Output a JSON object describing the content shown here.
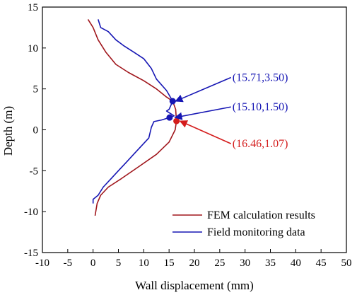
{
  "chart_data": {
    "type": "line",
    "xlabel": "Wall displacement (mm)",
    "ylabel": "Depth (m)",
    "xlim": [
      -10,
      50
    ],
    "ylim": [
      -15,
      15
    ],
    "xticks": [
      -10,
      -5,
      0,
      5,
      10,
      15,
      20,
      25,
      30,
      35,
      40,
      45,
      50
    ],
    "yticks": [
      -15,
      -10,
      -5,
      0,
      5,
      10,
      15
    ],
    "legend_position": "bottom-right",
    "grid": false,
    "series": [
      {
        "name": "FEM calculation results",
        "color": "#a0161c",
        "points": [
          [
            -1.0,
            13.5
          ],
          [
            0.0,
            12.5
          ],
          [
            1.0,
            11.0
          ],
          [
            2.5,
            9.5
          ],
          [
            4.5,
            8.0
          ],
          [
            7.0,
            7.0
          ],
          [
            10.0,
            6.0
          ],
          [
            12.5,
            5.0
          ],
          [
            14.5,
            4.0
          ],
          [
            15.71,
            3.5
          ],
          [
            16.3,
            2.5
          ],
          [
            16.46,
            1.07
          ],
          [
            16.2,
            0.0
          ],
          [
            15.0,
            -1.5
          ],
          [
            12.5,
            -3.0
          ],
          [
            9.0,
            -4.5
          ],
          [
            5.5,
            -6.0
          ],
          [
            3.0,
            -7.0
          ],
          [
            1.5,
            -8.0
          ],
          [
            0.8,
            -9.0
          ],
          [
            0.4,
            -10.5
          ]
        ]
      },
      {
        "name": "Field monitoring data",
        "color": "#1616b4",
        "points": [
          [
            1.0,
            13.5
          ],
          [
            1.5,
            12.5
          ],
          [
            3.0,
            12.0
          ],
          [
            4.5,
            11.0
          ],
          [
            6.0,
            10.3
          ],
          [
            8.0,
            9.5
          ],
          [
            10.0,
            8.7
          ],
          [
            11.5,
            7.5
          ],
          [
            12.5,
            6.2
          ],
          [
            14.5,
            4.8
          ],
          [
            15.71,
            3.5
          ],
          [
            15.0,
            2.5
          ],
          [
            14.5,
            2.3
          ],
          [
            16.0,
            1.7
          ],
          [
            15.1,
            1.5
          ],
          [
            13.5,
            1.2
          ],
          [
            12.0,
            1.0
          ],
          [
            11.5,
            0.3
          ],
          [
            11.0,
            -1.0
          ],
          [
            9.5,
            -2.0
          ],
          [
            8.0,
            -3.0
          ],
          [
            6.5,
            -4.0
          ],
          [
            5.0,
            -5.0
          ],
          [
            3.5,
            -6.0
          ],
          [
            2.0,
            -7.0
          ],
          [
            1.0,
            -8.0
          ],
          [
            0.0,
            -8.5
          ],
          [
            0.0,
            -9.0
          ]
        ]
      }
    ],
    "markers": [
      {
        "x": 15.71,
        "y": 3.5,
        "color": "#1616b4"
      },
      {
        "x": 15.1,
        "y": 1.5,
        "color": "#1616b4"
      },
      {
        "x": 16.46,
        "y": 1.07,
        "color": "#d41c1c"
      }
    ],
    "annotations": [
      {
        "text": "(15.71,3.50)",
        "color": "#1616b4",
        "target": [
          15.71,
          3.5
        ],
        "label_at": [
          27.5,
          6.4
        ]
      },
      {
        "text": "(15.10,1.50)",
        "color": "#1616b4",
        "target": [
          15.6,
          1.5
        ],
        "label_at": [
          27.5,
          2.8
        ]
      },
      {
        "text": "(16.46,1.07)",
        "color": "#d41c1c",
        "target": [
          16.6,
          1.07
        ],
        "label_at": [
          27.5,
          -1.7
        ]
      }
    ]
  }
}
